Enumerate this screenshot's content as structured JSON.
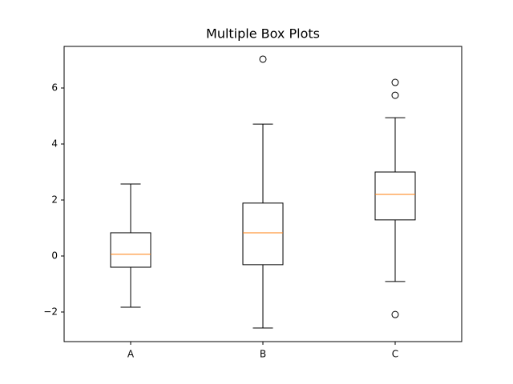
{
  "chart_data": {
    "type": "box",
    "title": "Multiple Box Plots",
    "categories": [
      "A",
      "B",
      "C"
    ],
    "boxes": [
      {
        "whisker_low": -1.83,
        "q1": -0.4,
        "median": 0.06,
        "q3": 0.83,
        "whisker_high": 2.57,
        "outliers": []
      },
      {
        "whisker_low": -2.57,
        "q1": -0.31,
        "median": 0.83,
        "q3": 1.89,
        "whisker_high": 4.71,
        "outliers": [
          7.03
        ]
      },
      {
        "whisker_low": -0.91,
        "q1": 1.29,
        "median": 2.2,
        "q3": 3.0,
        "whisker_high": 4.94,
        "outliers": [
          6.2,
          5.74,
          -2.09
        ]
      }
    ],
    "box_color": "#000000",
    "median_color": "#ff7f0e",
    "ylim": [
      -3.057,
      7.486
    ],
    "yticks": [
      {
        "value": -2,
        "label": "−2"
      },
      0,
      2,
      4,
      6
    ]
  }
}
